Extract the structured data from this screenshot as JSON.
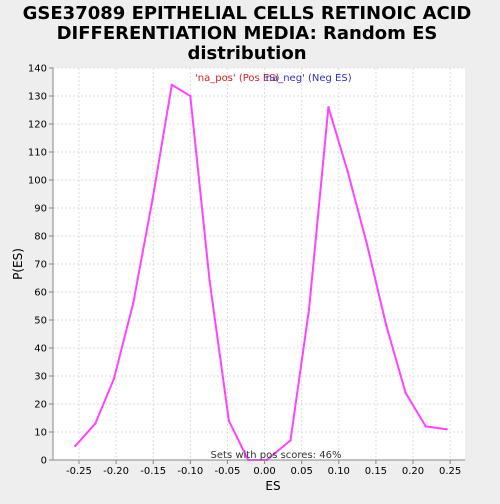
{
  "chart_data": {
    "type": "line",
    "title_lines": [
      "GSE37089 EPITHELIAL CELLS RETINOIC ACID",
      "DIFFERENTIATION MEDIA: Random ES",
      "distribution"
    ],
    "xlabel": "ES",
    "ylabel": "P(ES)",
    "xlim": [
      -0.285,
      0.27
    ],
    "ylim": [
      0,
      140
    ],
    "x_ticks": [
      -0.25,
      -0.2,
      -0.15,
      -0.1,
      -0.05,
      0.0,
      0.05,
      0.1,
      0.15,
      0.2,
      0.25
    ],
    "x_tick_labels": [
      "-0.25",
      "-0.20",
      "-0.15",
      "-0.10",
      "-0.05",
      "0.00",
      "0.05",
      "0.10",
      "0.15",
      "0.20",
      "0.25"
    ],
    "y_ticks": [
      0,
      10,
      20,
      30,
      40,
      50,
      60,
      70,
      80,
      90,
      100,
      110,
      120,
      130,
      140
    ],
    "grid": true,
    "legend": {
      "placement": "top-center",
      "items": [
        {
          "label": "'na_pos' (Pos ES)",
          "color": "#cc2222"
        },
        {
          "label": "'na_neg' (Neg ES)",
          "color": "#3333bb"
        }
      ]
    },
    "annotation": "Sets with pos scores: 46%",
    "series": [
      {
        "color": "#ff44ff",
        "x": [
          -0.255,
          -0.228,
          -0.203,
          -0.177,
          -0.151,
          -0.125,
          -0.1,
          -0.074,
          -0.048,
          -0.022,
          0.003,
          0.035,
          0.06,
          0.086,
          0.112,
          0.138,
          0.164,
          0.19,
          0.217,
          0.245
        ],
        "y": [
          5,
          13,
          29,
          56,
          93,
          134,
          130,
          64,
          14,
          0,
          0,
          7,
          54,
          126,
          103,
          77,
          48,
          24,
          12,
          11
        ]
      }
    ]
  }
}
